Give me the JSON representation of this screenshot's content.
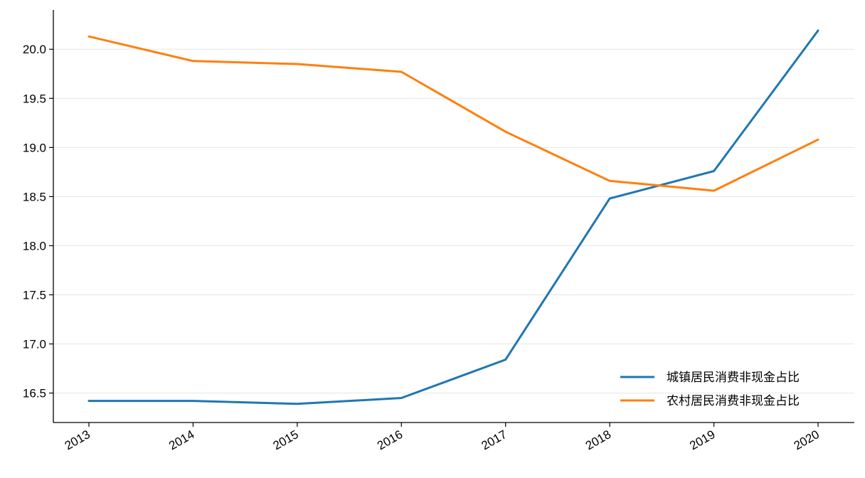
{
  "chart_data": {
    "type": "line",
    "title": "",
    "xlabel": "",
    "ylabel": "",
    "categories": [
      "2013",
      "2014",
      "2015",
      "2016",
      "2017",
      "2018",
      "2019",
      "2020"
    ],
    "series": [
      {
        "name": "城镇居民消费非现金占比",
        "color": "#1f77b4",
        "values": [
          16.42,
          16.42,
          16.39,
          16.45,
          16.84,
          18.48,
          18.76,
          20.19
        ]
      },
      {
        "name": "农村居民消费非现金占比",
        "color": "#ff7f0e",
        "values": [
          20.13,
          19.88,
          19.85,
          19.77,
          19.16,
          18.66,
          18.56,
          19.08
        ]
      }
    ],
    "ylim": [
      16.2,
      20.4
    ],
    "yticks": [
      "16.5",
      "17.0",
      "17.5",
      "18.0",
      "18.5",
      "19.0",
      "19.5",
      "20.0"
    ],
    "grid": "horizontal",
    "legend_position": "lower-right"
  }
}
